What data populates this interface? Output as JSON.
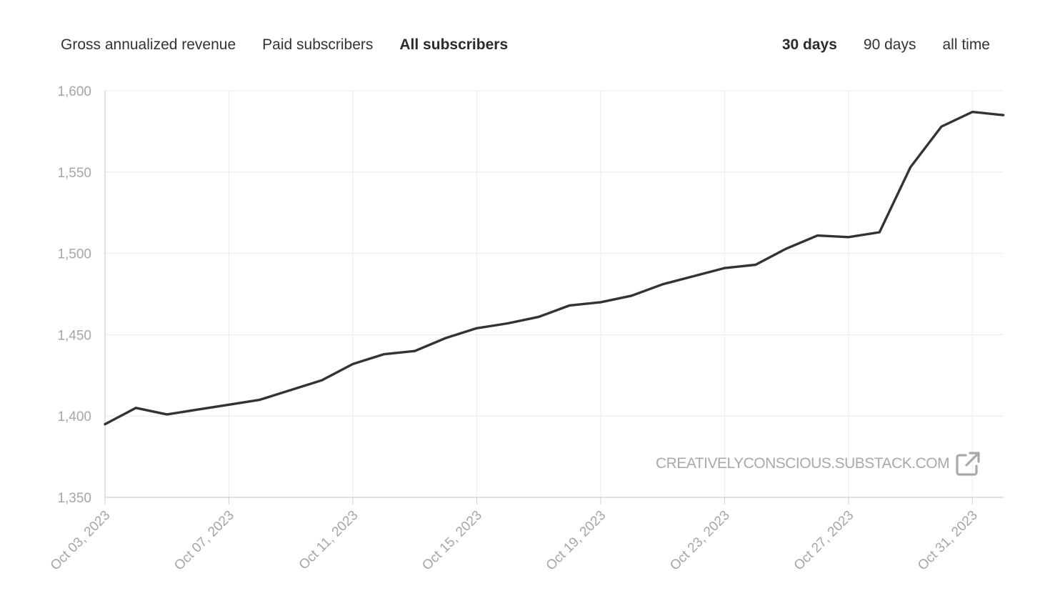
{
  "metric_tabs": [
    {
      "label": "Gross annualized revenue",
      "active": false
    },
    {
      "label": "Paid subscribers",
      "active": false
    },
    {
      "label": "All subscribers",
      "active": true
    }
  ],
  "range_tabs": [
    {
      "label": "30 days",
      "active": true
    },
    {
      "label": "90 days",
      "active": false
    },
    {
      "label": "all time",
      "active": false
    }
  ],
  "watermark": {
    "text": "CREATIVELYCONSCIOUS.SUBSTACK.COM",
    "icon": "external-link-icon"
  },
  "colors": {
    "line": "#333333",
    "grid": "#ececec",
    "axis": "#cfcfcf",
    "tick_text": "#a6a6a6"
  },
  "chart_data": {
    "type": "line",
    "title": "",
    "xlabel": "",
    "ylabel": "",
    "ylim": [
      1350,
      1600
    ],
    "yticks": [
      "1,350",
      "1,400",
      "1,450",
      "1,500",
      "1,550",
      "1,600"
    ],
    "ytick_values": [
      1350,
      1400,
      1450,
      1500,
      1550,
      1600
    ],
    "xticks": [
      "Oct 03, 2023",
      "Oct 07, 2023",
      "Oct 11, 2023",
      "Oct 15, 2023",
      "Oct 19, 2023",
      "Oct 23, 2023",
      "Oct 27, 2023",
      "Oct 31, 2023"
    ],
    "grid": true,
    "x": [
      "Oct 03, 2023",
      "Oct 04, 2023",
      "Oct 05, 2023",
      "Oct 06, 2023",
      "Oct 07, 2023",
      "Oct 08, 2023",
      "Oct 09, 2023",
      "Oct 10, 2023",
      "Oct 11, 2023",
      "Oct 12, 2023",
      "Oct 13, 2023",
      "Oct 14, 2023",
      "Oct 15, 2023",
      "Oct 16, 2023",
      "Oct 17, 2023",
      "Oct 18, 2023",
      "Oct 19, 2023",
      "Oct 20, 2023",
      "Oct 21, 2023",
      "Oct 22, 2023",
      "Oct 23, 2023",
      "Oct 24, 2023",
      "Oct 25, 2023",
      "Oct 26, 2023",
      "Oct 27, 2023",
      "Oct 28, 2023",
      "Oct 29, 2023",
      "Oct 30, 2023",
      "Oct 31, 2023",
      "Nov 01, 2023"
    ],
    "series": [
      {
        "values": [
          1395,
          1405,
          1401,
          1404,
          1407,
          1410,
          1416,
          1422,
          1432,
          1438,
          1440,
          1448,
          1454,
          1457,
          1461,
          1468,
          1470,
          1474,
          1481,
          1486,
          1491,
          1493,
          1503,
          1511,
          1510,
          1513,
          1553,
          1578,
          1587,
          1585
        ]
      }
    ]
  }
}
